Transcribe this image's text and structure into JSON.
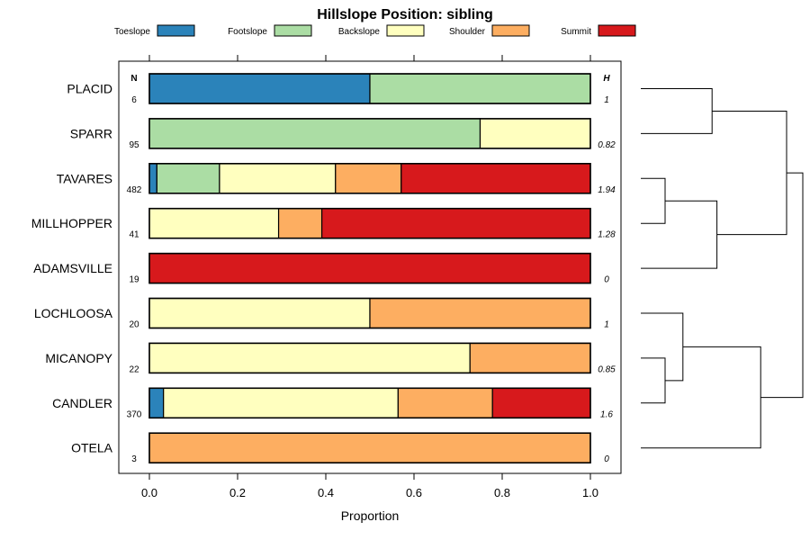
{
  "chart_data": {
    "type": "bar",
    "orientation": "horizontal",
    "stacked": true,
    "title": "Hillslope Position: sibling",
    "xlabel": "Proportion",
    "ylabel": "",
    "xlim": [
      0,
      1
    ],
    "x_ticks": [
      "0.0",
      "0.2",
      "0.4",
      "0.6",
      "0.8",
      "1.0"
    ],
    "n_header": "N",
    "h_header": "H",
    "legend": [
      {
        "name": "Toeslope",
        "color": "#2b83ba"
      },
      {
        "name": "Footslope",
        "color": "#abdda4"
      },
      {
        "name": "Backslope",
        "color": "#ffffbf"
      },
      {
        "name": "Shoulder",
        "color": "#fdae61"
      },
      {
        "name": "Summit",
        "color": "#d7191c"
      }
    ],
    "categories": [
      "PLACID",
      "SPARR",
      "TAVARES",
      "MILLHOPPER",
      "ADAMSVILLE",
      "LOCHLOOSA",
      "MICANOPY",
      "CANDLER",
      "OTELA"
    ],
    "n": [
      "6",
      "95",
      "482",
      "41",
      "19",
      "20",
      "22",
      "370",
      "3"
    ],
    "h": [
      "1",
      "0.82",
      "1.94",
      "1.28",
      "0",
      "1",
      "0.85",
      "1.6",
      "0"
    ],
    "series": [
      {
        "name": "Toeslope",
        "values": [
          0.5,
          0.0,
          0.017,
          0.0,
          0.0,
          0.0,
          0.0,
          0.032,
          0.0
        ]
      },
      {
        "name": "Footslope",
        "values": [
          0.5,
          0.75,
          0.142,
          0.0,
          0.0,
          0.0,
          0.0,
          0.0,
          0.0
        ]
      },
      {
        "name": "Backslope",
        "values": [
          0.0,
          0.25,
          0.263,
          0.293,
          0.0,
          0.5,
          0.727,
          0.532,
          0.0
        ]
      },
      {
        "name": "Shoulder",
        "values": [
          0.0,
          0.0,
          0.149,
          0.098,
          0.0,
          0.5,
          0.273,
          0.214,
          1.0
        ]
      },
      {
        "name": "Summit",
        "values": [
          0.0,
          0.0,
          0.429,
          0.609,
          1.0,
          0.0,
          0.0,
          0.222,
          0.0
        ]
      }
    ],
    "dendrogram": {
      "merges": [
        {
          "left": "TAVARES",
          "right": "MILLHOPPER",
          "height": 0.15
        },
        {
          "left": "MICANOPY",
          "right": "CANDLER",
          "height": 0.15
        },
        {
          "left": "LOCHLOOSA",
          "right": "MICANOPY+CANDLER",
          "height": 0.26
        },
        {
          "left": "PLACID",
          "right": "SPARR",
          "height": 0.44
        },
        {
          "left": "TAVARES+MILLHOPPER",
          "right": "ADAMSVILLE",
          "height": 0.47
        },
        {
          "left": "LOCHLOOSA+MICANOPY+CANDLER",
          "right": "OTELA",
          "height": 0.74
        },
        {
          "left": "PLACID+SPARR",
          "right": "TAVARES+MILLHOPPER+ADAMSVILLE",
          "height": 0.9
        },
        {
          "left": "all-upper",
          "right": "all-lower",
          "height": 1.0
        }
      ]
    }
  }
}
